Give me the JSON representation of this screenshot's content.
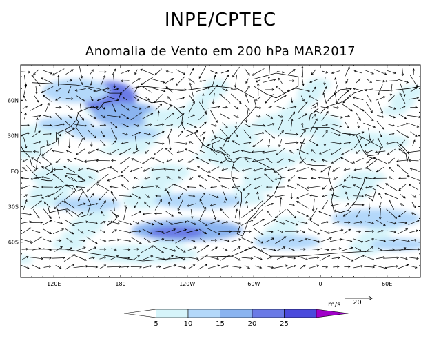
{
  "header": {
    "title": "INPE/CPTEC",
    "subtitle": "Anomalia de Vento em 200 hPa MAR2017"
  },
  "map": {
    "lat_labels": [
      "60N",
      "30N",
      "EQ",
      "30S",
      "60S"
    ],
    "lat_values": [
      60,
      30,
      0,
      -30,
      -60
    ],
    "lon_labels": [
      "120E",
      "180",
      "120W",
      "60W",
      "0",
      "60E"
    ],
    "lon_values": [
      120,
      180,
      240,
      300,
      360,
      420
    ],
    "lon_range": [
      90,
      450
    ],
    "lat_range": [
      -90,
      90
    ],
    "colors": {
      "frame": "#000000",
      "land_outline": "#000000",
      "arrow": "#000000"
    }
  },
  "reference_vector": {
    "units": "m/s",
    "value": "20"
  },
  "colorbar": {
    "labels": [
      "5",
      "10",
      "15",
      "20",
      "25"
    ],
    "colors": [
      "#ffffff",
      "#d6f4fa",
      "#b3d8fa",
      "#8ab4f0",
      "#6a7ae6",
      "#4a4adc",
      "#a000c8"
    ]
  },
  "shading_regions": [
    {
      "lon": 170,
      "lat": 62,
      "rlon": 24,
      "rlat": 14,
      "level": 4
    },
    {
      "lon": 185,
      "lat": 48,
      "rlon": 30,
      "rlat": 10,
      "level": 3
    },
    {
      "lon": 175,
      "lat": 32,
      "rlon": 40,
      "rlat": 6,
      "level": 2
    },
    {
      "lon": 140,
      "lat": 68,
      "rlon": 30,
      "rlat": 10,
      "level": 2
    },
    {
      "lon": 130,
      "lat": 40,
      "rlon": 25,
      "rlat": 6,
      "level": 2
    },
    {
      "lon": 230,
      "lat": 45,
      "rlon": 30,
      "rlat": 8,
      "level": 1
    },
    {
      "lon": 340,
      "lat": 40,
      "rlon": 40,
      "rlat": 10,
      "level": 1
    },
    {
      "lon": 400,
      "lat": 25,
      "rlon": 40,
      "rlat": 8,
      "level": 1
    },
    {
      "lon": 240,
      "lat": -50,
      "rlon": 50,
      "rlat": 9,
      "level": 3
    },
    {
      "lon": 230,
      "lat": -52,
      "rlon": 25,
      "rlat": 5,
      "level": 4
    },
    {
      "lon": 250,
      "lat": -25,
      "rlon": 40,
      "rlat": 7,
      "level": 2
    },
    {
      "lon": 150,
      "lat": -28,
      "rlon": 30,
      "rlat": 6,
      "level": 2
    },
    {
      "lon": 410,
      "lat": -40,
      "rlon": 40,
      "rlat": 8,
      "level": 2
    },
    {
      "lon": 330,
      "lat": -60,
      "rlon": 30,
      "rlat": 6,
      "level": 2
    },
    {
      "lon": 430,
      "lat": -62,
      "rlon": 25,
      "rlat": 5,
      "level": 2
    },
    {
      "lon": 300,
      "lat": 10,
      "rlon": 40,
      "rlat": 10,
      "level": 1
    },
    {
      "lon": 130,
      "lat": -5,
      "rlon": 30,
      "rlat": 10,
      "level": 1
    },
    {
      "lon": 200,
      "lat": -70,
      "rlon": 50,
      "rlat": 8,
      "level": 1
    }
  ]
}
